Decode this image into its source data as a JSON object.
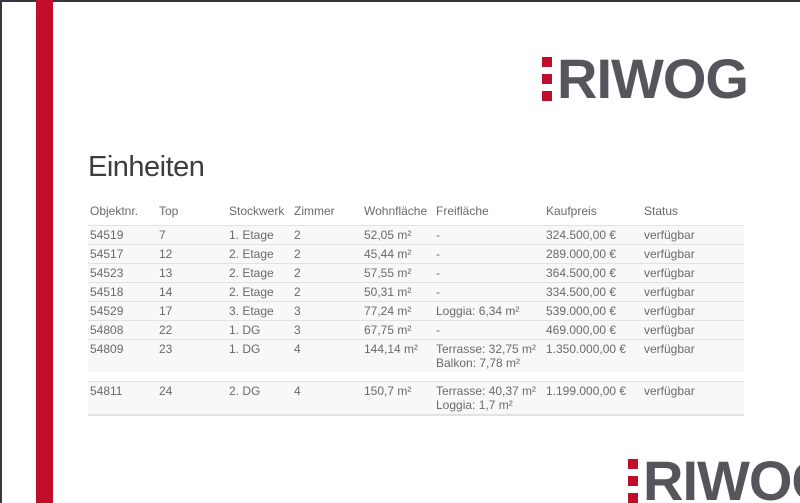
{
  "colors": {
    "accent_red": "#c00d2a",
    "logo_gray": "#55555c",
    "border_dark": "#36363e",
    "row_bg": "#f8f8f8",
    "row_border": "#e2e2e2",
    "text_muted": "#6a6a6a",
    "heading_text": "#3d3d3d"
  },
  "logo": {
    "text": "RIWOG"
  },
  "heading": {
    "title": "Einheiten"
  },
  "table": {
    "columns": [
      {
        "key": "objektnr",
        "label": "Objektnr."
      },
      {
        "key": "top",
        "label": "Top"
      },
      {
        "key": "stockwerk",
        "label": "Stockwerk"
      },
      {
        "key": "zimmer",
        "label": "Zimmer"
      },
      {
        "key": "wohnflaeche",
        "label": "Wohnfläche"
      },
      {
        "key": "freiflaeche",
        "label": "Freifläche"
      },
      {
        "key": "kaufpreis",
        "label": "Kaufpreis"
      },
      {
        "key": "status",
        "label": "Status"
      }
    ],
    "rows": [
      {
        "objektnr": "54519",
        "top": "7",
        "stockwerk": "1. Etage",
        "zimmer": "2",
        "wohnflaeche": "52,05 m²",
        "freiflaeche": [
          "-"
        ],
        "kaufpreis": "324.500,00 €",
        "status": "verfügbar"
      },
      {
        "objektnr": "54517",
        "top": "12",
        "stockwerk": "2. Etage",
        "zimmer": "2",
        "wohnflaeche": "45,44 m²",
        "freiflaeche": [
          "-"
        ],
        "kaufpreis": "289.000,00 €",
        "status": "verfügbar"
      },
      {
        "objektnr": "54523",
        "top": "13",
        "stockwerk": "2. Etage",
        "zimmer": "2",
        "wohnflaeche": "57,55 m²",
        "freiflaeche": [
          "-"
        ],
        "kaufpreis": "364.500,00 €",
        "status": "verfügbar"
      },
      {
        "objektnr": "54518",
        "top": "14",
        "stockwerk": "2. Etage",
        "zimmer": "2",
        "wohnflaeche": "50,31 m²",
        "freiflaeche": [
          "-"
        ],
        "kaufpreis": "334.500,00 €",
        "status": "verfügbar"
      },
      {
        "objektnr": "54529",
        "top": "17",
        "stockwerk": "3. Etage",
        "zimmer": "3",
        "wohnflaeche": "77,24 m²",
        "freiflaeche": [
          "Loggia: 6,34 m²"
        ],
        "kaufpreis": "539.000,00 €",
        "status": "verfügbar"
      },
      {
        "objektnr": "54808",
        "top": "22",
        "stockwerk": "1. DG",
        "zimmer": "3",
        "wohnflaeche": "67,75 m²",
        "freiflaeche": [
          "-"
        ],
        "kaufpreis": "469.000,00 €",
        "status": "verfügbar"
      },
      {
        "objektnr": "54809",
        "top": "23",
        "stockwerk": "1. DG",
        "zimmer": "4",
        "wohnflaeche": "144,14 m²",
        "freiflaeche": [
          "Terrasse: 32,75 m²",
          "Balkon: 7,78 m²"
        ],
        "kaufpreis": "1.350.000,00 €",
        "status": "verfügbar"
      },
      {
        "objektnr": "54811",
        "top": "24",
        "stockwerk": "2. DG",
        "zimmer": "4",
        "wohnflaeche": "150,7 m²",
        "freiflaeche": [
          "Terrasse: 40,37 m²",
          "Loggia: 1,7 m²"
        ],
        "kaufpreis": "1.199.000,00 €",
        "status": "verfügbar"
      }
    ]
  }
}
